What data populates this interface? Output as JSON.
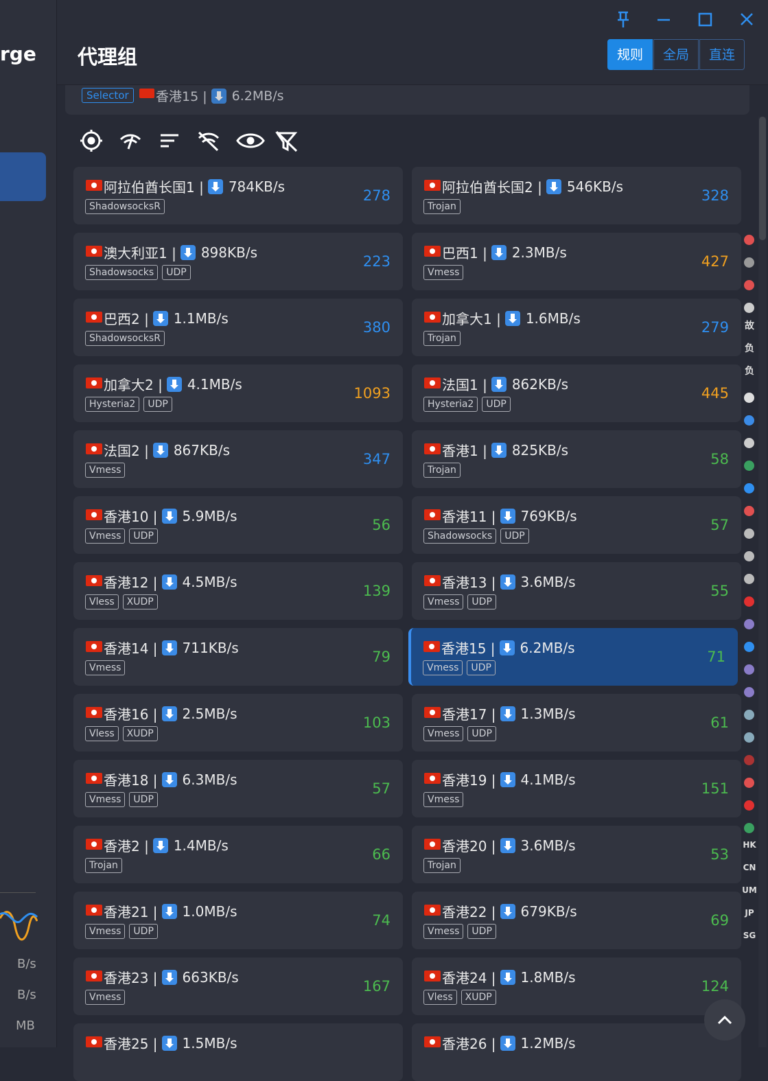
{
  "sidebar": {
    "app_name_fragment": "rge",
    "traffic_units": [
      "B/s",
      "B/s",
      "MB"
    ]
  },
  "header": {
    "title": "代理组",
    "modes": [
      {
        "label": "规则",
        "active": true
      },
      {
        "label": "全局",
        "active": false
      },
      {
        "label": "直连",
        "active": false
      }
    ]
  },
  "group": {
    "type": "Selector",
    "current": "香港15 |",
    "current_speed": "6.2MB/s"
  },
  "proxies": [
    {
      "name": "阿拉伯酋长国1 |",
      "speed": "784KB/s",
      "tags": [
        "ShadowsocksR"
      ],
      "latency": 278
    },
    {
      "name": "阿拉伯酋长国2 |",
      "speed": "546KB/s",
      "tags": [
        "Trojan"
      ],
      "latency": 328
    },
    {
      "name": "澳大利亚1 |",
      "speed": "898KB/s",
      "tags": [
        "Shadowsocks",
        "UDP"
      ],
      "latency": 223
    },
    {
      "name": "巴西1 |",
      "speed": "2.3MB/s",
      "tags": [
        "Vmess"
      ],
      "latency": 427
    },
    {
      "name": "巴西2 |",
      "speed": "1.1MB/s",
      "tags": [
        "ShadowsocksR"
      ],
      "latency": 380
    },
    {
      "name": "加拿大1 |",
      "speed": "1.6MB/s",
      "tags": [
        "Trojan"
      ],
      "latency": 279
    },
    {
      "name": "加拿大2 |",
      "speed": "4.1MB/s",
      "tags": [
        "Hysteria2",
        "UDP"
      ],
      "latency": 1093
    },
    {
      "name": "法国1 |",
      "speed": "862KB/s",
      "tags": [
        "Hysteria2",
        "UDP"
      ],
      "latency": 445
    },
    {
      "name": "法国2 |",
      "speed": "867KB/s",
      "tags": [
        "Vmess"
      ],
      "latency": 347
    },
    {
      "name": "香港1 |",
      "speed": "825KB/s",
      "tags": [
        "Trojan"
      ],
      "latency": 58
    },
    {
      "name": "香港10 |",
      "speed": "5.9MB/s",
      "tags": [
        "Vmess",
        "UDP"
      ],
      "latency": 56
    },
    {
      "name": "香港11 |",
      "speed": "769KB/s",
      "tags": [
        "Shadowsocks",
        "UDP"
      ],
      "latency": 57
    },
    {
      "name": "香港12 |",
      "speed": "4.5MB/s",
      "tags": [
        "Vless",
        "XUDP"
      ],
      "latency": 139
    },
    {
      "name": "香港13 |",
      "speed": "3.6MB/s",
      "tags": [
        "Vmess",
        "UDP"
      ],
      "latency": 55
    },
    {
      "name": "香港14 |",
      "speed": "711KB/s",
      "tags": [
        "Vmess"
      ],
      "latency": 79
    },
    {
      "name": "香港15 |",
      "speed": "6.2MB/s",
      "tags": [
        "Vmess",
        "UDP"
      ],
      "latency": 71,
      "selected": true
    },
    {
      "name": "香港16 |",
      "speed": "2.5MB/s",
      "tags": [
        "Vless",
        "XUDP"
      ],
      "latency": 103
    },
    {
      "name": "香港17 |",
      "speed": "1.3MB/s",
      "tags": [
        "Vmess",
        "UDP"
      ],
      "latency": 61
    },
    {
      "name": "香港18 |",
      "speed": "6.3MB/s",
      "tags": [
        "Vmess",
        "UDP"
      ],
      "latency": 57
    },
    {
      "name": "香港19 |",
      "speed": "4.1MB/s",
      "tags": [
        "Vmess"
      ],
      "latency": 151
    },
    {
      "name": "香港2 |",
      "speed": "1.4MB/s",
      "tags": [
        "Trojan"
      ],
      "latency": 66
    },
    {
      "name": "香港20 |",
      "speed": "3.6MB/s",
      "tags": [
        "Trojan"
      ],
      "latency": 53
    },
    {
      "name": "香港21 |",
      "speed": "1.0MB/s",
      "tags": [
        "Vmess",
        "UDP"
      ],
      "latency": 74
    },
    {
      "name": "香港22 |",
      "speed": "679KB/s",
      "tags": [
        "Vmess",
        "UDP"
      ],
      "latency": 69
    },
    {
      "name": "香港23 |",
      "speed": "663KB/s",
      "tags": [
        "Vmess"
      ],
      "latency": 167
    },
    {
      "name": "香港24 |",
      "speed": "1.8MB/s",
      "tags": [
        "Vless",
        "XUDP"
      ],
      "latency": 124
    },
    {
      "name": "香港25 |",
      "speed": "1.5MB/s",
      "tags": []
    },
    {
      "name": "香港26 |",
      "speed": "1.2MB/s",
      "tags": []
    }
  ],
  "side_index": [
    "故",
    "负",
    "负",
    "HK",
    "CN",
    "UM",
    "JP",
    "SG"
  ]
}
